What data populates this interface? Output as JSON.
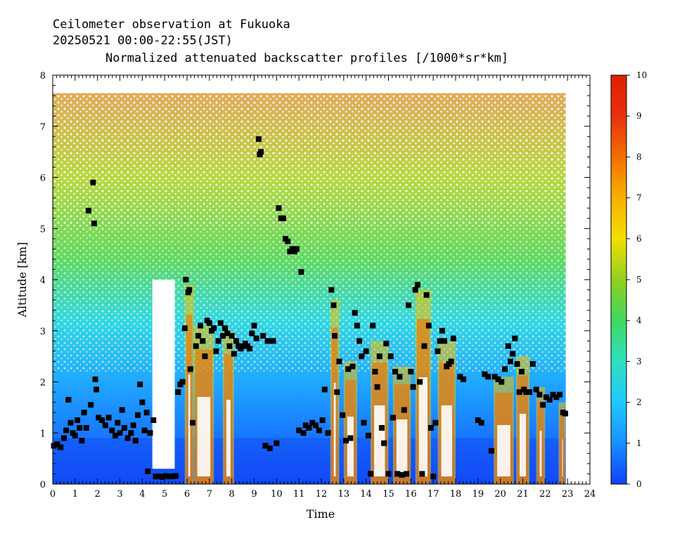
{
  "chart_data": {
    "type": "heatmap",
    "title_lines": [
      "Ceilometer observation at Fukuoka",
      "20250521  00:00-22:55(JST)",
      "Normalized attenuated backscatter profiles [/1000*sr*km]"
    ],
    "xlabel": "Time",
    "ylabel": "Altitude [km]",
    "xlim": [
      0,
      24
    ],
    "ylim": [
      0,
      8
    ],
    "data_extent": {
      "time_end": 22.92,
      "alt_top": 7.65
    },
    "x_ticks": [
      "0",
      "1",
      "2",
      "3",
      "4",
      "5",
      "6",
      "7",
      "8",
      "9",
      "10",
      "11",
      "12",
      "13",
      "14",
      "15",
      "16",
      "17",
      "18",
      "19",
      "20",
      "21",
      "22",
      "23",
      "24"
    ],
    "y_ticks": [
      "0",
      "1",
      "2",
      "3",
      "4",
      "5",
      "6",
      "7",
      "8"
    ],
    "colorbar": {
      "range": [
        0,
        10
      ],
      "ticks": [
        "0",
        "1",
        "2",
        "3",
        "4",
        "5",
        "6",
        "7",
        "8",
        "9",
        "10"
      ],
      "colors": [
        "#1040ff",
        "#1890ff",
        "#20c8ff",
        "#30e0c0",
        "#40d860",
        "#90d020",
        "#f0e000",
        "#f8b000",
        "#f07000",
        "#e83010",
        "#e02000"
      ]
    },
    "cloud_base_points": [
      [
        0.05,
        0.75
      ],
      [
        0.2,
        0.78
      ],
      [
        0.35,
        0.72
      ],
      [
        0.5,
        0.9
      ],
      [
        0.6,
        1.05
      ],
      [
        0.7,
        1.65
      ],
      [
        0.8,
        1.2
      ],
      [
        0.9,
        1.0
      ],
      [
        1.0,
        0.95
      ],
      [
        1.1,
        1.25
      ],
      [
        1.2,
        1.1
      ],
      [
        1.3,
        0.85
      ],
      [
        1.4,
        1.4
      ],
      [
        1.5,
        1.1
      ],
      [
        1.6,
        5.35
      ],
      [
        1.7,
        1.55
      ],
      [
        1.8,
        5.9
      ],
      [
        1.85,
        5.1
      ],
      [
        1.9,
        2.05
      ],
      [
        1.95,
        1.85
      ],
      [
        2.05,
        1.3
      ],
      [
        2.2,
        1.25
      ],
      [
        2.35,
        1.15
      ],
      [
        2.5,
        1.3
      ],
      [
        2.65,
        1.05
      ],
      [
        2.8,
        0.95
      ],
      [
        2.9,
        1.2
      ],
      [
        3.0,
        1.0
      ],
      [
        3.1,
        1.45
      ],
      [
        3.2,
        1.1
      ],
      [
        3.35,
        0.9
      ],
      [
        3.5,
        1.0
      ],
      [
        3.6,
        1.15
      ],
      [
        3.7,
        0.85
      ],
      [
        3.8,
        1.35
      ],
      [
        3.9,
        1.95
      ],
      [
        4.0,
        1.6
      ],
      [
        4.1,
        1.05
      ],
      [
        4.2,
        1.4
      ],
      [
        4.25,
        0.25
      ],
      [
        4.35,
        1.0
      ],
      [
        4.5,
        1.25
      ],
      [
        4.6,
        0.15
      ],
      [
        4.75,
        0.15
      ],
      [
        4.9,
        0.14
      ],
      [
        5.05,
        0.16
      ],
      [
        5.2,
        0.15
      ],
      [
        5.35,
        0.15
      ],
      [
        5.5,
        0.16
      ],
      [
        5.6,
        1.8
      ],
      [
        5.7,
        1.95
      ],
      [
        5.8,
        2.0
      ],
      [
        5.9,
        3.05
      ],
      [
        5.95,
        4.0
      ],
      [
        6.05,
        3.75
      ],
      [
        6.1,
        3.8
      ],
      [
        6.15,
        2.25
      ],
      [
        6.25,
        1.2
      ],
      [
        6.4,
        2.7
      ],
      [
        6.5,
        2.9
      ],
      [
        6.6,
        3.1
      ],
      [
        6.7,
        2.8
      ],
      [
        6.8,
        2.5
      ],
      [
        6.9,
        3.2
      ],
      [
        7.0,
        3.15
      ],
      [
        7.1,
        3.0
      ],
      [
        7.2,
        3.05
      ],
      [
        7.3,
        2.6
      ],
      [
        7.4,
        2.8
      ],
      [
        7.5,
        3.15
      ],
      [
        7.6,
        2.9
      ],
      [
        7.7,
        3.05
      ],
      [
        7.8,
        2.95
      ],
      [
        7.9,
        2.7
      ],
      [
        8.0,
        2.9
      ],
      [
        8.1,
        2.55
      ],
      [
        8.2,
        2.8
      ],
      [
        8.3,
        2.7
      ],
      [
        8.4,
        2.65
      ],
      [
        8.5,
        2.7
      ],
      [
        8.6,
        2.75
      ],
      [
        8.7,
        2.7
      ],
      [
        8.8,
        2.65
      ],
      [
        8.9,
        2.95
      ],
      [
        9.0,
        3.1
      ],
      [
        9.1,
        2.85
      ],
      [
        9.2,
        6.75
      ],
      [
        9.25,
        6.45
      ],
      [
        9.3,
        6.5
      ],
      [
        9.4,
        2.9
      ],
      [
        9.5,
        0.75
      ],
      [
        9.6,
        2.8
      ],
      [
        9.7,
        0.7
      ],
      [
        9.85,
        2.8
      ],
      [
        10.0,
        0.8
      ],
      [
        10.1,
        5.4
      ],
      [
        10.2,
        5.2
      ],
      [
        10.3,
        5.2
      ],
      [
        10.4,
        4.8
      ],
      [
        10.5,
        4.75
      ],
      [
        10.6,
        4.55
      ],
      [
        10.7,
        4.6
      ],
      [
        10.8,
        4.55
      ],
      [
        10.9,
        4.6
      ],
      [
        11.0,
        1.05
      ],
      [
        11.1,
        4.15
      ],
      [
        11.2,
        1.0
      ],
      [
        11.3,
        1.15
      ],
      [
        11.45,
        1.1
      ],
      [
        11.6,
        1.2
      ],
      [
        11.75,
        1.15
      ],
      [
        11.9,
        1.05
      ],
      [
        12.05,
        1.25
      ],
      [
        12.15,
        1.85
      ],
      [
        12.3,
        1.0
      ],
      [
        12.45,
        3.8
      ],
      [
        12.55,
        3.5
      ],
      [
        12.6,
        2.9
      ],
      [
        12.7,
        1.8
      ],
      [
        12.8,
        2.4
      ],
      [
        12.95,
        1.35
      ],
      [
        13.1,
        0.85
      ],
      [
        13.2,
        2.25
      ],
      [
        13.3,
        0.9
      ],
      [
        13.4,
        2.3
      ],
      [
        13.5,
        3.35
      ],
      [
        13.6,
        3.1
      ],
      [
        13.7,
        2.8
      ],
      [
        13.8,
        2.5
      ],
      [
        13.9,
        1.2
      ],
      [
        14.0,
        2.6
      ],
      [
        14.1,
        0.95
      ],
      [
        14.2,
        0.2
      ],
      [
        14.3,
        3.1
      ],
      [
        14.4,
        2.2
      ],
      [
        14.5,
        1.9
      ],
      [
        14.6,
        2.5
      ],
      [
        14.7,
        1.1
      ],
      [
        14.8,
        0.8
      ],
      [
        14.9,
        2.75
      ],
      [
        15.0,
        0.2
      ],
      [
        15.1,
        2.5
      ],
      [
        15.2,
        1.3
      ],
      [
        15.3,
        2.2
      ],
      [
        15.4,
        0.2
      ],
      [
        15.5,
        2.1
      ],
      [
        15.6,
        0.18
      ],
      [
        15.7,
        1.45
      ],
      [
        15.8,
        0.2
      ],
      [
        15.9,
        3.5
      ],
      [
        16.0,
        2.2
      ],
      [
        16.1,
        1.9
      ],
      [
        16.2,
        3.8
      ],
      [
        16.3,
        3.9
      ],
      [
        16.4,
        2.0
      ],
      [
        16.5,
        0.2
      ],
      [
        16.6,
        2.7
      ],
      [
        16.7,
        3.7
      ],
      [
        16.8,
        3.1
      ],
      [
        16.9,
        1.1
      ],
      [
        17.0,
        0.15
      ],
      [
        17.1,
        1.2
      ],
      [
        17.2,
        2.6
      ],
      [
        17.3,
        2.8
      ],
      [
        17.4,
        3.0
      ],
      [
        17.5,
        2.8
      ],
      [
        17.6,
        2.3
      ],
      [
        17.7,
        2.35
      ],
      [
        17.8,
        2.4
      ],
      [
        17.9,
        2.85
      ],
      [
        18.2,
        2.1
      ],
      [
        18.35,
        2.05
      ],
      [
        19.0,
        1.25
      ],
      [
        19.15,
        1.2
      ],
      [
        19.3,
        2.15
      ],
      [
        19.45,
        2.1
      ],
      [
        19.6,
        0.65
      ],
      [
        19.75,
        2.1
      ],
      [
        19.9,
        2.05
      ],
      [
        20.05,
        2.0
      ],
      [
        20.2,
        2.25
      ],
      [
        20.35,
        2.7
      ],
      [
        20.45,
        2.4
      ],
      [
        20.55,
        2.55
      ],
      [
        20.65,
        2.85
      ],
      [
        20.75,
        2.35
      ],
      [
        20.85,
        1.8
      ],
      [
        20.95,
        2.2
      ],
      [
        21.05,
        1.85
      ],
      [
        21.15,
        1.8
      ],
      [
        21.3,
        1.8
      ],
      [
        21.45,
        2.35
      ],
      [
        21.6,
        1.85
      ],
      [
        21.75,
        1.75
      ],
      [
        21.9,
        1.55
      ],
      [
        22.05,
        1.7
      ],
      [
        22.2,
        1.65
      ],
      [
        22.35,
        1.75
      ],
      [
        22.5,
        1.7
      ],
      [
        22.65,
        1.75
      ],
      [
        22.8,
        1.4
      ],
      [
        22.9,
        1.38
      ]
    ],
    "grid": false
  }
}
